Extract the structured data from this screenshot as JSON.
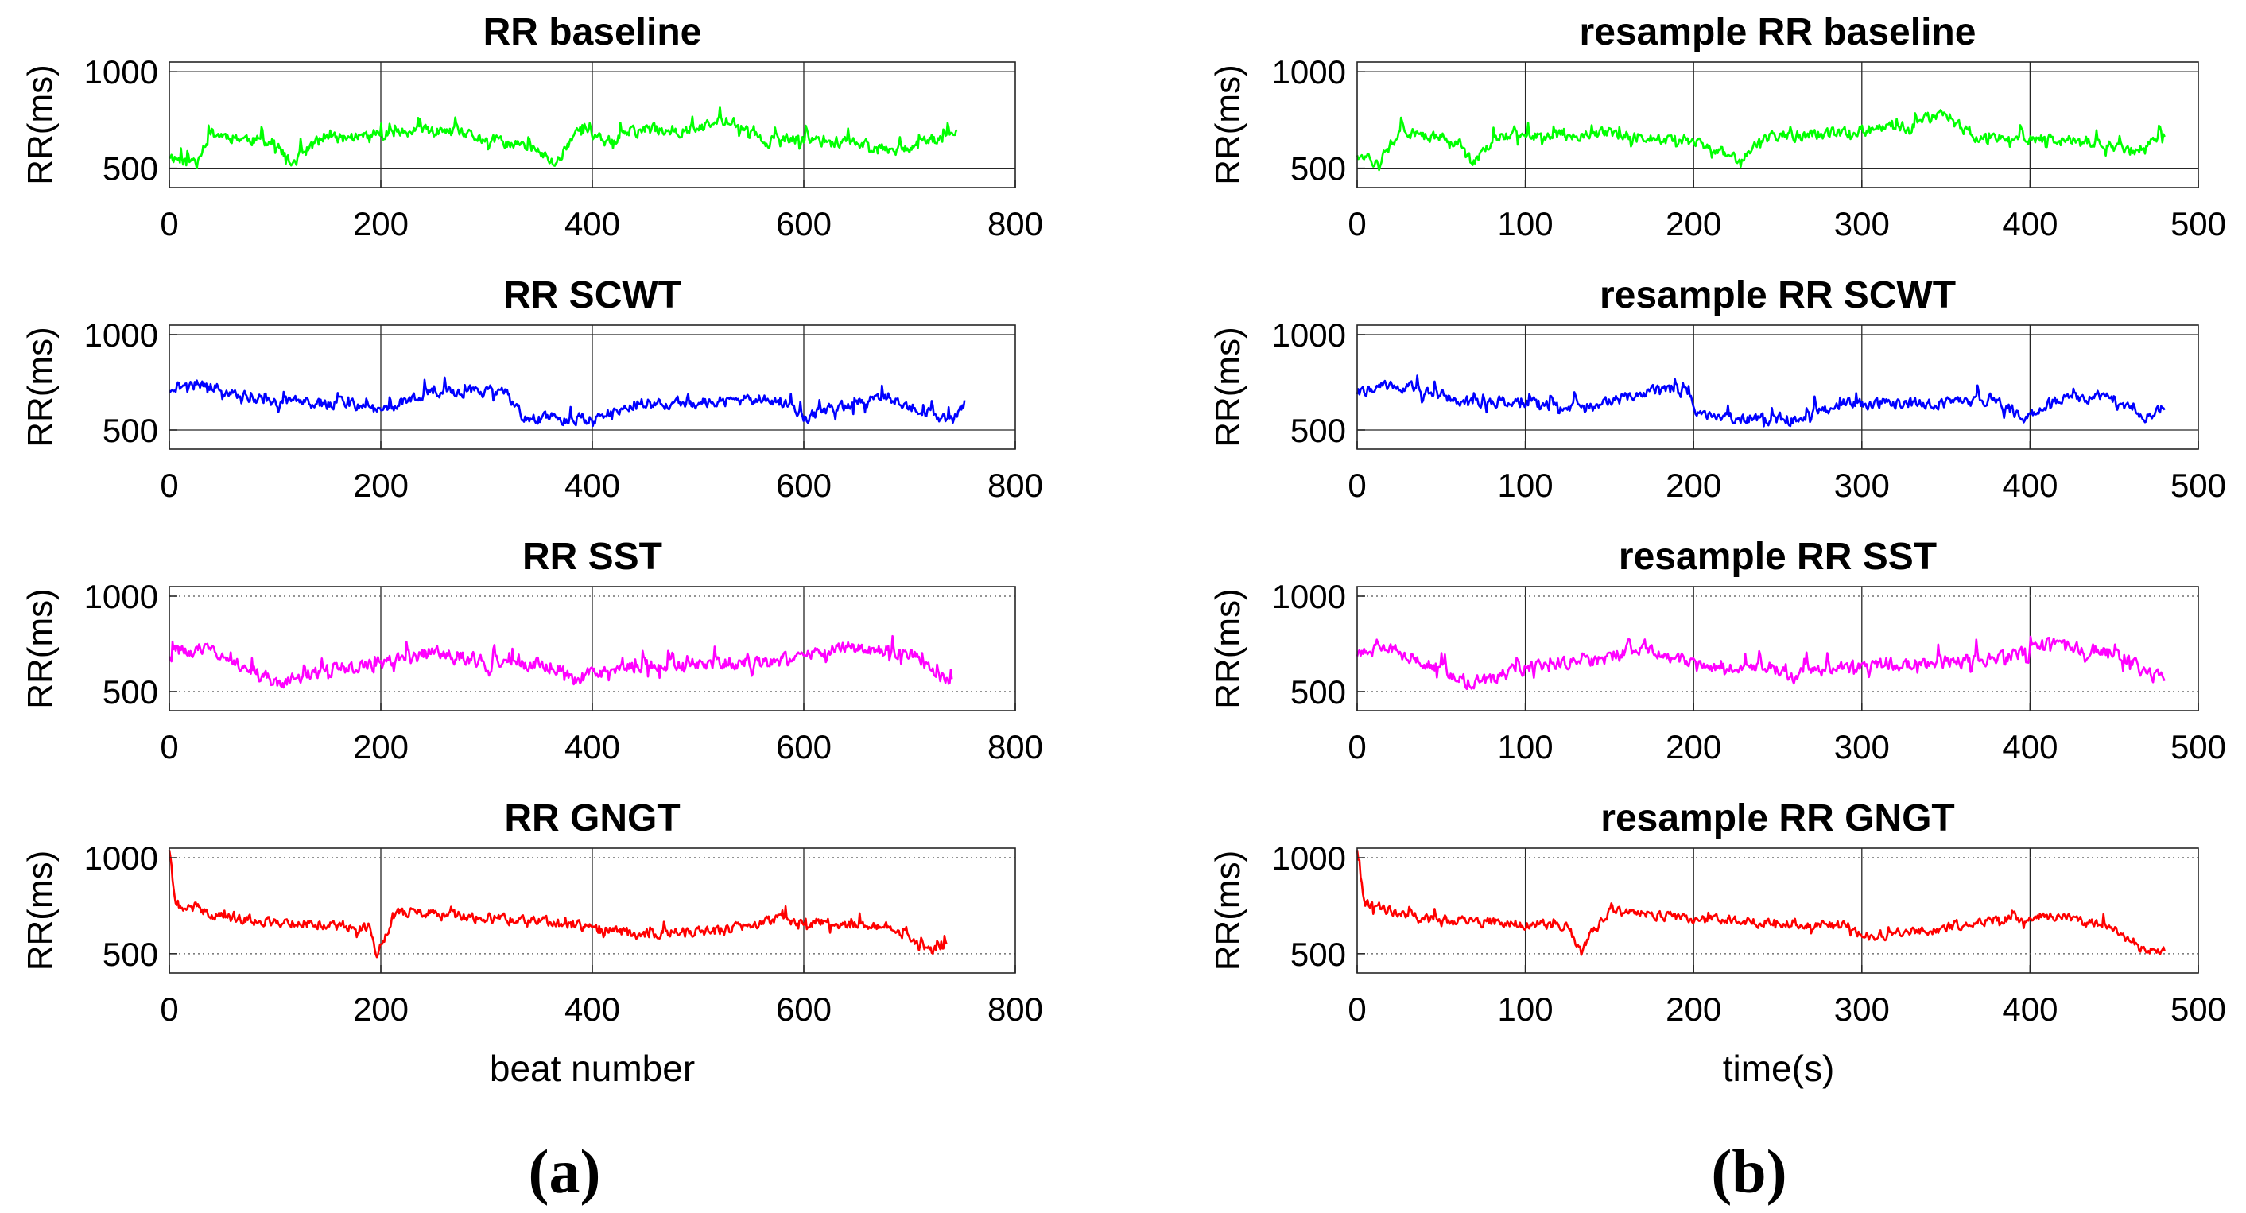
{
  "panel_labels": {
    "left": "(a)",
    "right": "(b)"
  },
  "xlabels": {
    "left": "beat number",
    "right": "time(s)"
  },
  "chart_data": [
    {
      "type": "line",
      "title": "RR baseline",
      "ylabel": "RR(ms)",
      "xlabel": "",
      "xlim": [
        0,
        800
      ],
      "ylim": [
        400,
        1050
      ],
      "xticks": [
        0,
        200,
        400,
        600,
        800
      ],
      "yticks": [
        500,
        1000
      ],
      "color": "#00ff00",
      "grid": "on",
      "seed": 11,
      "series": [
        {
          "x_start": 0,
          "x_end": 745,
          "n": 745,
          "knots": [
            [
              0,
              570
            ],
            [
              20,
              520
            ],
            [
              40,
              680
            ],
            [
              100,
              630
            ],
            [
              115,
              520
            ],
            [
              140,
              640
            ],
            [
              200,
              680
            ],
            [
              260,
              690
            ],
            [
              320,
              630
            ],
            [
              345,
              600
            ],
            [
              365,
              520
            ],
            [
              385,
              700
            ],
            [
              410,
              640
            ],
            [
              450,
              700
            ],
            [
              500,
              700
            ],
            [
              530,
              760
            ],
            [
              560,
              640
            ],
            [
              600,
              650
            ],
            [
              640,
              640
            ],
            [
              690,
              600
            ],
            [
              745,
              680
            ]
          ],
          "noise": 45
        }
      ]
    },
    {
      "type": "line",
      "title": "resample RR baseline",
      "ylabel": "RR(ms)",
      "xlabel": "",
      "xlim": [
        0,
        500
      ],
      "ylim": [
        400,
        1050
      ],
      "xticks": [
        0,
        100,
        200,
        300,
        400,
        500
      ],
      "yticks": [
        500,
        1000
      ],
      "color": "#00ff00",
      "grid": "on",
      "seed": 12,
      "series": [
        {
          "x_start": 0,
          "x_end": 480,
          "n": 700,
          "knots": [
            [
              0,
              580
            ],
            [
              12,
              520
            ],
            [
              25,
              690
            ],
            [
              60,
              640
            ],
            [
              68,
              530
            ],
            [
              85,
              660
            ],
            [
              150,
              680
            ],
            [
              200,
              640
            ],
            [
              215,
              600
            ],
            [
              228,
              520
            ],
            [
              240,
              660
            ],
            [
              280,
              680
            ],
            [
              330,
              720
            ],
            [
              345,
              780
            ],
            [
              370,
              660
            ],
            [
              400,
              650
            ],
            [
              440,
              640
            ],
            [
              460,
              590
            ],
            [
              480,
              680
            ]
          ],
          "noise": 45
        }
      ]
    },
    {
      "type": "line",
      "title": "RR SCWT",
      "ylabel": "RR(ms)",
      "xlabel": "",
      "xlim": [
        0,
        800
      ],
      "ylim": [
        400,
        1050
      ],
      "xticks": [
        0,
        200,
        400,
        600,
        800
      ],
      "yticks": [
        500,
        1000
      ],
      "color": "#0000ff",
      "grid": "on",
      "seed": 21,
      "series": [
        {
          "x_start": 0,
          "x_end": 752,
          "n": 752,
          "knots": [
            [
              0,
              720
            ],
            [
              30,
              750
            ],
            [
              80,
              660
            ],
            [
              150,
              640
            ],
            [
              200,
              610
            ],
            [
              250,
              700
            ],
            [
              300,
              700
            ],
            [
              315,
              720
            ],
            [
              335,
              560
            ],
            [
              360,
              560
            ],
            [
              400,
              560
            ],
            [
              440,
              640
            ],
            [
              500,
              640
            ],
            [
              560,
              660
            ],
            [
              580,
              650
            ],
            [
              600,
              560
            ],
            [
              630,
              620
            ],
            [
              680,
              670
            ],
            [
              720,
              580
            ],
            [
              740,
              540
            ],
            [
              752,
              640
            ]
          ],
          "noise": 45
        }
      ]
    },
    {
      "type": "line",
      "title": "resample RR SCWT",
      "ylabel": "RR(ms)",
      "xlabel": "",
      "xlim": [
        0,
        500
      ],
      "ylim": [
        400,
        1050
      ],
      "xticks": [
        0,
        100,
        200,
        300,
        400,
        500
      ],
      "yticks": [
        500,
        1000
      ],
      "color": "#0000ff",
      "grid": "on",
      "seed": 22,
      "series": [
        {
          "x_start": 0,
          "x_end": 480,
          "n": 700,
          "knots": [
            [
              0,
              700
            ],
            [
              20,
              740
            ],
            [
              60,
              660
            ],
            [
              100,
              640
            ],
            [
              140,
              620
            ],
            [
              170,
              700
            ],
            [
              195,
              700
            ],
            [
              205,
              560
            ],
            [
              230,
              560
            ],
            [
              260,
              560
            ],
            [
              290,
              640
            ],
            [
              340,
              640
            ],
            [
              380,
              660
            ],
            [
              395,
              560
            ],
            [
              420,
              680
            ],
            [
              450,
              660
            ],
            [
              470,
              570
            ],
            [
              480,
              620
            ]
          ],
          "noise": 45
        }
      ]
    },
    {
      "type": "line",
      "title": "RR SST",
      "ylabel": "RR(ms)",
      "xlabel": "",
      "xlim": [
        0,
        800
      ],
      "ylim": [
        400,
        1050
      ],
      "xticks": [
        0,
        200,
        400,
        600,
        800
      ],
      "yticks": [
        500,
        1000
      ],
      "color": "#ff00ff",
      "grid": "on",
      "seed": 31,
      "series": [
        {
          "x_start": 0,
          "x_end": 740,
          "n": 740,
          "knots": [
            [
              0,
              700
            ],
            [
              30,
              720
            ],
            [
              70,
              640
            ],
            [
              100,
              540
            ],
            [
              150,
              620
            ],
            [
              200,
              640
            ],
            [
              260,
              720
            ],
            [
              300,
              640
            ],
            [
              360,
              640
            ],
            [
              385,
              570
            ],
            [
              420,
              620
            ],
            [
              470,
              640
            ],
            [
              520,
              660
            ],
            [
              560,
              640
            ],
            [
              600,
              680
            ],
            [
              640,
              740
            ],
            [
              700,
              700
            ],
            [
              730,
              580
            ],
            [
              740,
              560
            ]
          ],
          "noise": 55
        }
      ]
    },
    {
      "type": "line",
      "title": "resample RR SST",
      "ylabel": "RR(ms)",
      "xlabel": "",
      "xlim": [
        0,
        500
      ],
      "ylim": [
        400,
        1050
      ],
      "xticks": [
        0,
        100,
        200,
        300,
        400,
        500
      ],
      "yticks": [
        500,
        1000
      ],
      "color": "#ff00ff",
      "grid": "on",
      "seed": 32,
      "series": [
        {
          "x_start": 0,
          "x_end": 480,
          "n": 700,
          "knots": [
            [
              0,
              700
            ],
            [
              20,
              720
            ],
            [
              45,
              640
            ],
            [
              68,
              540
            ],
            [
              100,
              620
            ],
            [
              140,
              660
            ],
            [
              170,
              740
            ],
            [
              200,
              640
            ],
            [
              240,
              640
            ],
            [
              260,
              580
            ],
            [
              280,
              620
            ],
            [
              320,
              640
            ],
            [
              360,
              660
            ],
            [
              400,
              700
            ],
            [
              410,
              760
            ],
            [
              450,
              700
            ],
            [
              470,
              600
            ],
            [
              480,
              560
            ]
          ],
          "noise": 55
        }
      ]
    },
    {
      "type": "line",
      "title": "RR GNGT",
      "ylabel": "RR(ms)",
      "xlabel": "beat number",
      "xlim": [
        0,
        800
      ],
      "ylim": [
        400,
        1050
      ],
      "xticks": [
        0,
        200,
        400,
        600,
        800
      ],
      "yticks": [
        500,
        1000
      ],
      "color": "#ff0000",
      "grid": "on",
      "seed": 41,
      "series": [
        {
          "x_start": 0,
          "x_end": 735,
          "n": 735,
          "knots": [
            [
              0,
              1040
            ],
            [
              6,
              760
            ],
            [
              60,
              680
            ],
            [
              120,
              660
            ],
            [
              190,
              640
            ],
            [
              196,
              500
            ],
            [
              215,
              720
            ],
            [
              260,
              700
            ],
            [
              320,
              680
            ],
            [
              400,
              640
            ],
            [
              440,
              600
            ],
            [
              520,
              620
            ],
            [
              580,
              680
            ],
            [
              620,
              660
            ],
            [
              680,
              640
            ],
            [
              715,
              520
            ],
            [
              735,
              520
            ]
          ],
          "noise": 40
        }
      ]
    },
    {
      "type": "line",
      "title": "resample RR GNGT",
      "ylabel": "RR(ms)",
      "xlabel": "time(s)",
      "xlim": [
        0,
        500
      ],
      "ylim": [
        400,
        1050
      ],
      "xticks": [
        0,
        100,
        200,
        300,
        400,
        500
      ],
      "yticks": [
        500,
        1000
      ],
      "color": "#ff0000",
      "grid": "on",
      "seed": 42,
      "series": [
        {
          "x_start": 0,
          "x_end": 480,
          "n": 700,
          "knots": [
            [
              0,
              1040
            ],
            [
              4,
              760
            ],
            [
              40,
              680
            ],
            [
              90,
              660
            ],
            [
              125,
              640
            ],
            [
              132,
              520
            ],
            [
              150,
              720
            ],
            [
              200,
              680
            ],
            [
              260,
              660
            ],
            [
              295,
              640
            ],
            [
              300,
              590
            ],
            [
              340,
              620
            ],
            [
              380,
              680
            ],
            [
              420,
              700
            ],
            [
              450,
              620
            ],
            [
              470,
              520
            ],
            [
              480,
              520
            ]
          ],
          "noise": 40
        }
      ]
    }
  ]
}
